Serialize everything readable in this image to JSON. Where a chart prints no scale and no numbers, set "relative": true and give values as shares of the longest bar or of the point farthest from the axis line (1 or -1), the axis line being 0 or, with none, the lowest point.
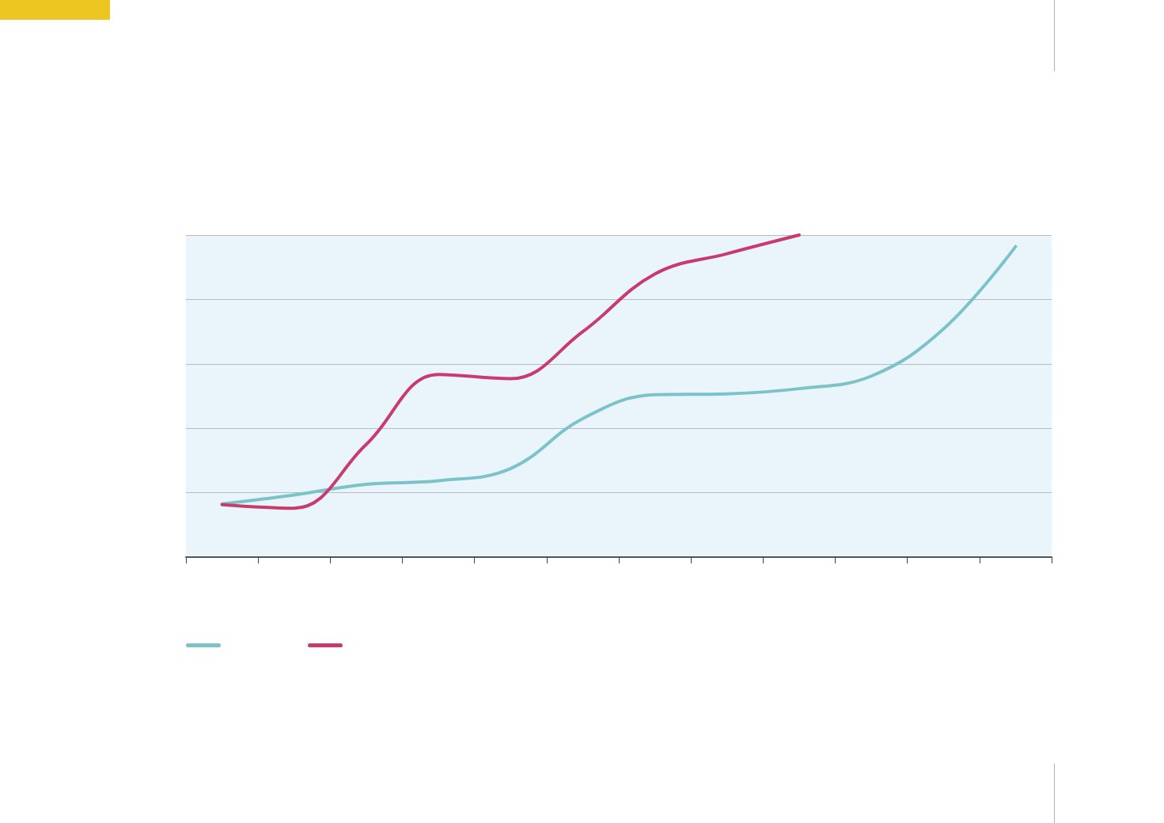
{
  "chart_data": {
    "type": "line",
    "relative": true,
    "categories": [
      null,
      null,
      null,
      null,
      null,
      null,
      null,
      null,
      null,
      null,
      null,
      null
    ],
    "grid": "y",
    "marker": "none",
    "line_style": "solid",
    "series": [
      {
        "color": "#7bc3c9",
        "values": [
          0.165,
          0.193,
          0.226,
          0.237,
          0.275,
          0.43,
          0.504,
          0.507,
          0.523,
          0.562,
          0.708,
          0.964
        ]
      },
      {
        "color": "#c93a6e",
        "values": [
          0.163,
          0.152,
          0.35,
          0.567,
          0.554,
          0.7,
          0.879,
          0.942,
          1,
          null,
          null,
          null
        ]
      }
    ]
  }
}
